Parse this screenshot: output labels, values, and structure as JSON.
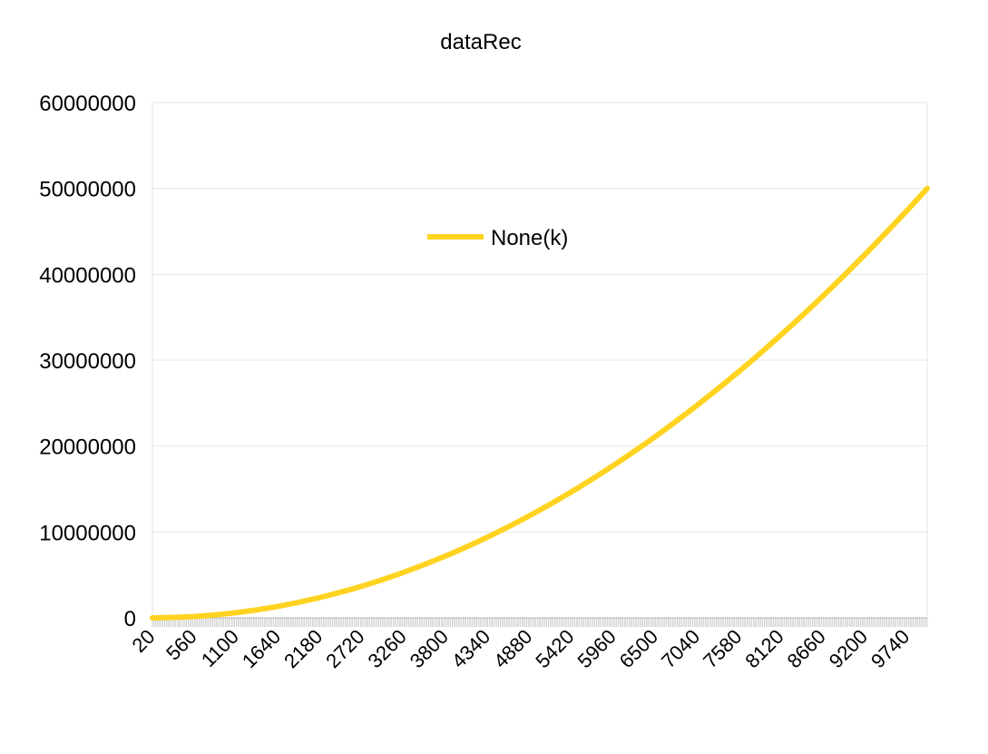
{
  "chart_data": {
    "type": "line",
    "title": "dataRec",
    "xlabel": "",
    "ylabel": "",
    "ylim": [
      0,
      60000000
    ],
    "y_ticks": [
      "0",
      "10000000",
      "20000000",
      "30000000",
      "40000000",
      "50000000",
      "60000000"
    ],
    "x_tick_labels": [
      "20",
      "560",
      "1100",
      "1640",
      "2180",
      "2720",
      "3260",
      "3800",
      "4340",
      "4880",
      "5420",
      "5960",
      "6500",
      "7040",
      "7580",
      "8120",
      "8660",
      "9200",
      "9740"
    ],
    "x_range": [
      20,
      10000
    ],
    "x_step": 20,
    "grid": true,
    "legend_position": "top-center",
    "series": [
      {
        "name": "None(k)",
        "color": "#FFD320",
        "x": [
          20,
          560,
          1100,
          1640,
          2180,
          2720,
          3260,
          3800,
          4340,
          4880,
          5420,
          5960,
          6500,
          7040,
          7580,
          8120,
          8660,
          9200,
          9740,
          10000
        ],
        "values": [
          200,
          157000,
          605000,
          1345000,
          2376000,
          3699000,
          5314000,
          7220000,
          9418000,
          11907000,
          14688000,
          17761000,
          21125000,
          24781000,
          28728000,
          32967000,
          37498000,
          42320000,
          47434000,
          50000000
        ]
      }
    ]
  }
}
